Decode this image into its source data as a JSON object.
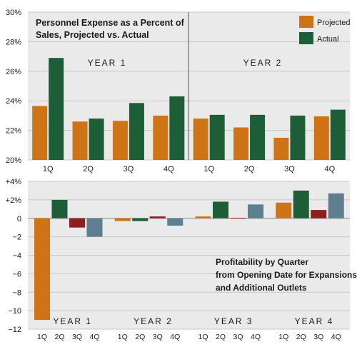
{
  "colors": {
    "projected": "#cf7416",
    "actual": "#1d5e39",
    "dark_red": "#8c1f1f",
    "slate_blue": "#5f7f91",
    "panel_bg": "#eaeaea",
    "grid": "#c8c8c8",
    "text": "#1a1a1a"
  },
  "chart_data": [
    {
      "type": "bar",
      "title": "Personnel Expense as a Percent of Sales, Projected vs. Actual",
      "title_lines": [
        "Personnel Expense as a Percent of",
        "Sales, Projected vs. Actual"
      ],
      "categories": [
        "1Q",
        "2Q",
        "3Q",
        "4Q",
        "1Q",
        "2Q",
        "3Q",
        "4Q"
      ],
      "groups": [
        "YEAR 1",
        "YEAR 2"
      ],
      "series": [
        {
          "name": "Projected",
          "values": [
            23.65,
            22.6,
            22.65,
            23.0,
            22.8,
            22.2,
            21.5,
            22.95
          ]
        },
        {
          "name": "Actual",
          "values": [
            26.9,
            22.8,
            23.85,
            24.3,
            23.05,
            23.05,
            23.0,
            23.4
          ]
        }
      ],
      "ylim": [
        20,
        30
      ],
      "y_ticks": [
        "20%",
        "22%",
        "24%",
        "26%",
        "28%",
        "30%"
      ],
      "grid": true,
      "legend": "top-right"
    },
    {
      "type": "bar",
      "title": "Profitability by Quarter from Opening Date for Expansions and Additional Outlets",
      "title_lines": [
        "Profitability by Quarter",
        "from Opening Date for Expansions",
        "and Additional Outlets"
      ],
      "categories": [
        "1Q",
        "2Q",
        "3Q",
        "4Q"
      ],
      "groups": [
        "YEAR 1",
        "YEAR 2",
        "YEAR 3",
        "YEAR 4"
      ],
      "quarter_colors": [
        "#cf7416",
        "#1d5e39",
        "#8c1f1f",
        "#5f7f91"
      ],
      "values": [
        [
          -11.0,
          2.0,
          -1.0,
          -2.0
        ],
        [
          -0.3,
          -0.3,
          0.2,
          -0.8
        ],
        [
          0.2,
          1.8,
          0.05,
          1.5
        ],
        [
          1.7,
          3.0,
          0.9,
          2.7
        ]
      ],
      "ylim": [
        -12,
        4
      ],
      "y_ticks": [
        "−12",
        "−10",
        "−8",
        "−6",
        "−4",
        "−2",
        "0",
        "+2%",
        "+4%"
      ],
      "grid": true
    }
  ]
}
